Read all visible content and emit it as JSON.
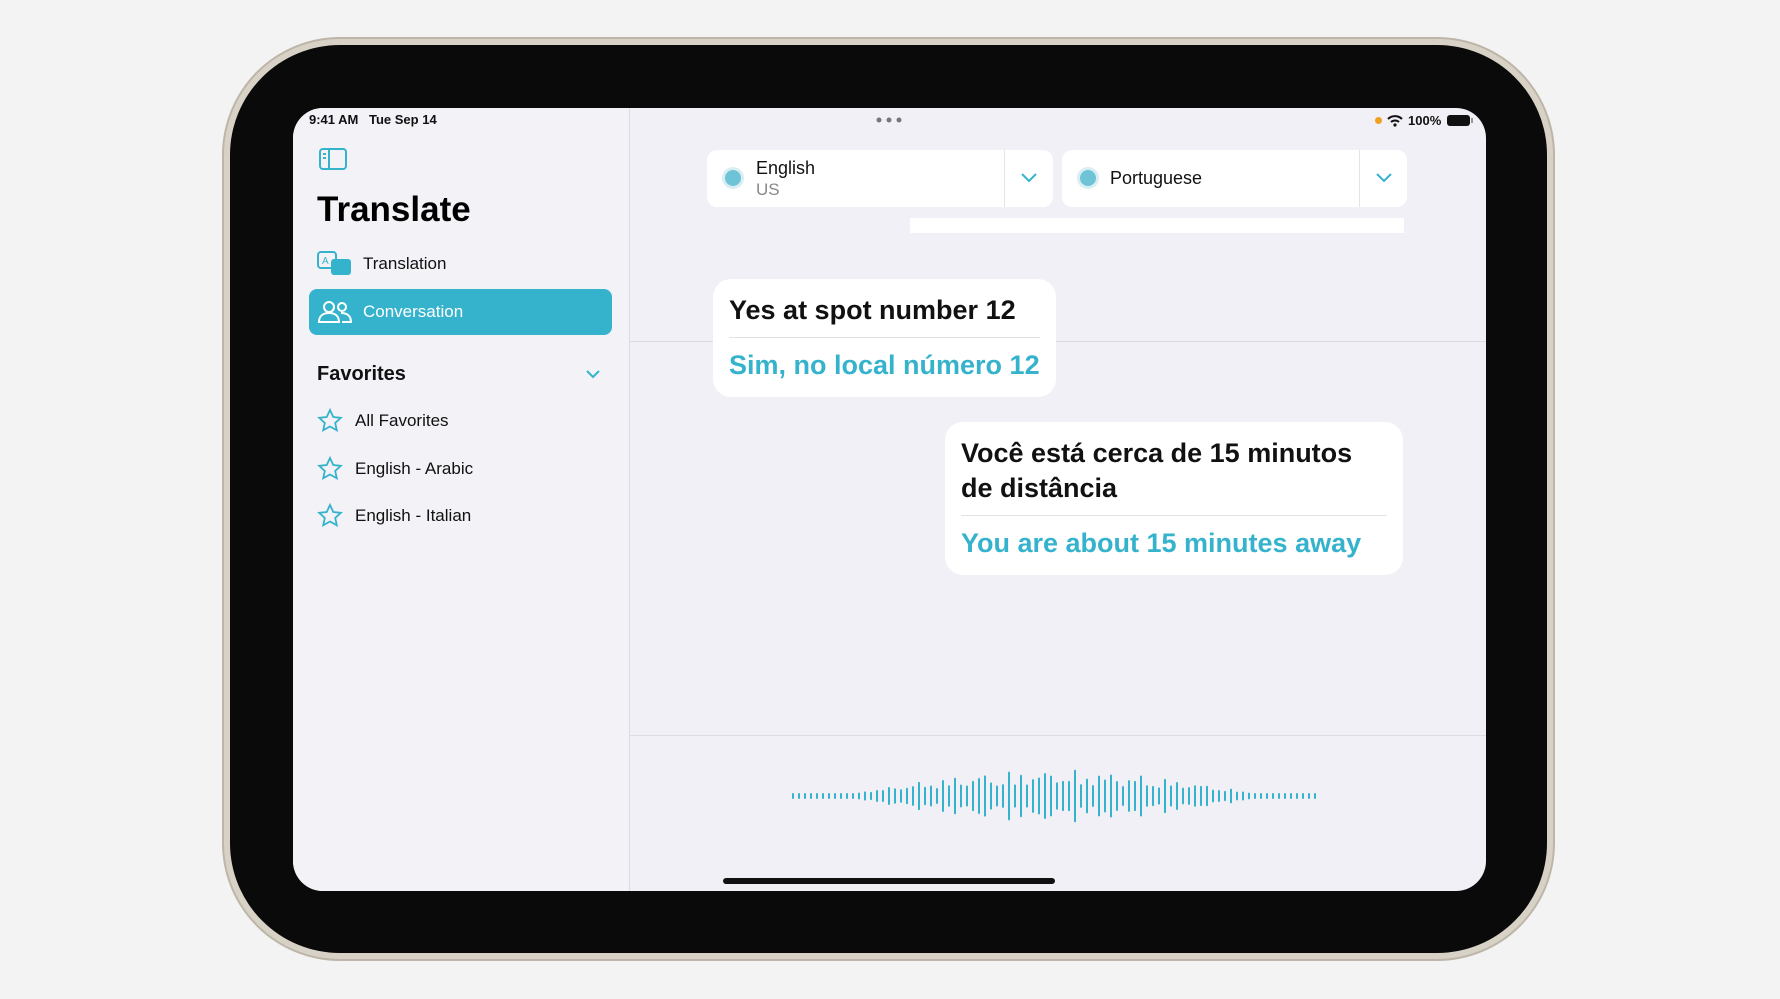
{
  "status_bar": {
    "time": "9:41 AM",
    "date": "Tue Sep 14",
    "battery": "100%"
  },
  "sidebar": {
    "title": "Translate",
    "nav": [
      {
        "label": "Translation",
        "selected": false
      },
      {
        "label": "Conversation",
        "selected": true
      }
    ],
    "favorites": {
      "title": "Favorites",
      "items": [
        "All Favorites",
        "English - Arabic",
        "English - Italian"
      ]
    }
  },
  "languages": [
    {
      "name": "English",
      "region": "US"
    },
    {
      "name": "Portuguese"
    }
  ],
  "messages": [
    {
      "text": "Yes at spot number 12",
      "translation": "Sim, no local número 12"
    },
    {
      "text": "Você está cerca de 15 minutos de distância",
      "translation": "You are about 15 minutes away"
    }
  ]
}
